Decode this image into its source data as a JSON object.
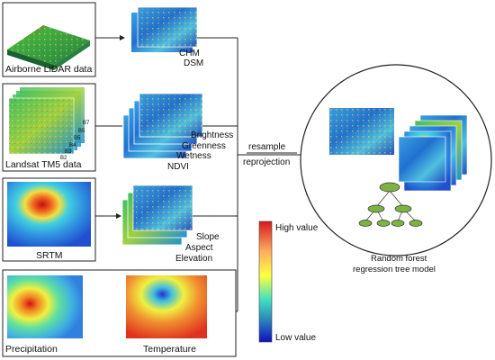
{
  "inputs": {
    "lidar": {
      "label": "Airborne LiDAR data",
      "products": [
        "CHM",
        "DSM"
      ]
    },
    "landsat": {
      "label": "Landsat TM5 data",
      "band_labels": [
        "B7",
        "B5",
        "B5",
        "B4",
        "B3",
        "B2"
      ],
      "products": [
        "Brightness",
        "Greenness",
        "Wetness",
        "NDVI"
      ]
    },
    "srtm": {
      "label": "SRTM",
      "products": [
        "Slope",
        "Aspect",
        "Elevation"
      ]
    },
    "climate": {
      "labels": [
        "Precipitation",
        "Temperature"
      ]
    }
  },
  "process": {
    "step1": "resample",
    "step2": "reprojection"
  },
  "legend": {
    "high": "High value",
    "low": "Low value"
  },
  "model": {
    "label_line1": "Random forest",
    "label_line2": "regression tree model"
  },
  "colors": {
    "high": "#d7191c",
    "mid": "#ffff40",
    "low": "#1010c0",
    "tree": "#7cb342"
  }
}
